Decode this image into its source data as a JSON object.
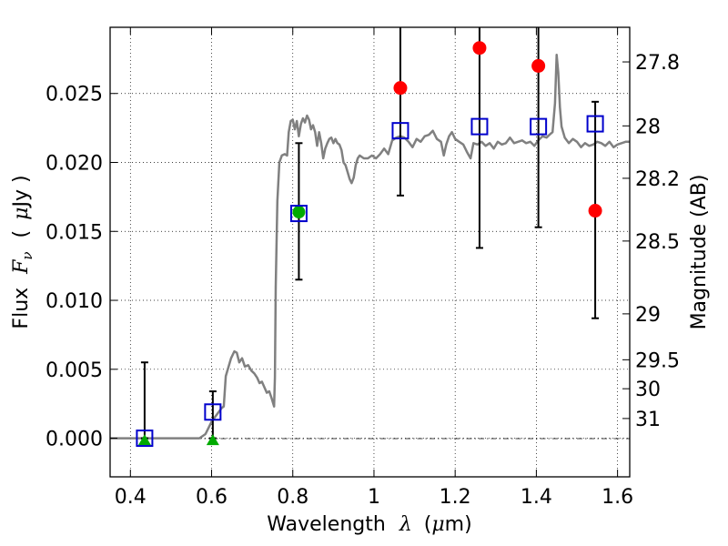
{
  "chart_data": {
    "type": "scatter",
    "xlabel_text": "Wavelength",
    "xlabel_symbol": "λ",
    "xlabel_units_open": "(",
    "xlabel_units_mu": "μ",
    "xlabel_units_rest": "m)",
    "ylabel_text": "Flux",
    "ylabel_symbol": "F",
    "ylabel_symbol_sub": "ν",
    "ylabel_units_open": "(",
    "ylabel_units_mu": "μ",
    "ylabel_units_rest": "Jy )",
    "y2label": "Magnitude (AB)",
    "xlim": [
      0.35,
      1.63
    ],
    "ylim": [
      -0.0028,
      0.0298
    ],
    "x_ticks": [
      0.4,
      0.6,
      0.8,
      1.0,
      1.2,
      1.4,
      1.6
    ],
    "x_tick_labels": [
      "0.4",
      "0.6",
      "0.8",
      "1",
      "1.2",
      "1.4",
      "1.6"
    ],
    "y_ticks": [
      0.0,
      0.005,
      0.01,
      0.015,
      0.02,
      0.025
    ],
    "y_tick_labels": [
      "0.000",
      "0.005",
      "0.010",
      "0.015",
      "0.020",
      "0.025"
    ],
    "mag_ticks": [
      {
        "flux": 0.02729,
        "label": "27.8"
      },
      {
        "flux": 0.02265,
        "label": "28"
      },
      {
        "flux": 0.01885,
        "label": "28.2"
      },
      {
        "flux": 0.0143,
        "label": "28.5"
      },
      {
        "flux": 0.00902,
        "label": "29"
      },
      {
        "flux": 0.00569,
        "label": "29.5"
      },
      {
        "flux": 0.00359,
        "label": "30"
      },
      {
        "flux": 0.00143,
        "label": "31"
      }
    ],
    "grid": true,
    "series": [
      {
        "name": "model-spectrum",
        "kind": "line",
        "color": "#808080",
        "points": [
          [
            0.35,
            0.0
          ],
          [
            0.57,
            0.0
          ],
          [
            0.585,
            0.0003
          ],
          [
            0.6,
            0.0012
          ],
          [
            0.615,
            0.0018
          ],
          [
            0.625,
            0.0022
          ],
          [
            0.63,
            0.0023
          ],
          [
            0.635,
            0.0045
          ],
          [
            0.648,
            0.0058
          ],
          [
            0.656,
            0.0063
          ],
          [
            0.662,
            0.0062
          ],
          [
            0.668,
            0.0055
          ],
          [
            0.675,
            0.0058
          ],
          [
            0.682,
            0.0052
          ],
          [
            0.69,
            0.0053
          ],
          [
            0.698,
            0.0049
          ],
          [
            0.705,
            0.0047
          ],
          [
            0.712,
            0.0044
          ],
          [
            0.718,
            0.004
          ],
          [
            0.724,
            0.0041
          ],
          [
            0.73,
            0.0037
          ],
          [
            0.736,
            0.0033
          ],
          [
            0.742,
            0.0034
          ],
          [
            0.748,
            0.0029
          ],
          [
            0.752,
            0.0025
          ],
          [
            0.754,
            0.0023
          ],
          [
            0.756,
            0.0044
          ],
          [
            0.758,
            0.011
          ],
          [
            0.762,
            0.0172
          ],
          [
            0.767,
            0.02
          ],
          [
            0.773,
            0.0205
          ],
          [
            0.78,
            0.0206
          ],
          [
            0.786,
            0.0205
          ],
          [
            0.79,
            0.0222
          ],
          [
            0.795,
            0.023
          ],
          [
            0.8,
            0.0231
          ],
          [
            0.805,
            0.0224
          ],
          [
            0.81,
            0.023
          ],
          [
            0.815,
            0.0219
          ],
          [
            0.82,
            0.0228
          ],
          [
            0.825,
            0.0232
          ],
          [
            0.83,
            0.0229
          ],
          [
            0.835,
            0.0234
          ],
          [
            0.84,
            0.0231
          ],
          [
            0.845,
            0.0224
          ],
          [
            0.85,
            0.0227
          ],
          [
            0.855,
            0.0222
          ],
          [
            0.86,
            0.0212
          ],
          [
            0.865,
            0.0222
          ],
          [
            0.87,
            0.0214
          ],
          [
            0.875,
            0.0203
          ],
          [
            0.88,
            0.021
          ],
          [
            0.885,
            0.0214
          ],
          [
            0.89,
            0.0217
          ],
          [
            0.895,
            0.0218
          ],
          [
            0.9,
            0.0214
          ],
          [
            0.905,
            0.0217
          ],
          [
            0.91,
            0.0214
          ],
          [
            0.915,
            0.0213
          ],
          [
            0.92,
            0.0209
          ],
          [
            0.925,
            0.02
          ],
          [
            0.93,
            0.0198
          ],
          [
            0.935,
            0.0193
          ],
          [
            0.94,
            0.0188
          ],
          [
            0.945,
            0.0185
          ],
          [
            0.95,
            0.0189
          ],
          [
            0.955,
            0.0198
          ],
          [
            0.96,
            0.0203
          ],
          [
            0.965,
            0.0205
          ],
          [
            0.975,
            0.0203
          ],
          [
            0.985,
            0.0203
          ],
          [
            0.995,
            0.0205
          ],
          [
            1.005,
            0.0203
          ],
          [
            1.015,
            0.0206
          ],
          [
            1.025,
            0.021
          ],
          [
            1.035,
            0.0206
          ],
          [
            1.045,
            0.0216
          ],
          [
            1.055,
            0.0218
          ],
          [
            1.065,
            0.0219
          ],
          [
            1.075,
            0.0218
          ],
          [
            1.085,
            0.0215
          ],
          [
            1.095,
            0.0211
          ],
          [
            1.105,
            0.0217
          ],
          [
            1.115,
            0.0215
          ],
          [
            1.125,
            0.0219
          ],
          [
            1.135,
            0.022
          ],
          [
            1.145,
            0.0223
          ],
          [
            1.155,
            0.0217
          ],
          [
            1.165,
            0.0215
          ],
          [
            1.172,
            0.0205
          ],
          [
            1.178,
            0.0213
          ],
          [
            1.185,
            0.0219
          ],
          [
            1.192,
            0.0222
          ],
          [
            1.2,
            0.0217
          ],
          [
            1.21,
            0.0215
          ],
          [
            1.22,
            0.0213
          ],
          [
            1.23,
            0.0207
          ],
          [
            1.238,
            0.0203
          ],
          [
            1.245,
            0.0214
          ],
          [
            1.255,
            0.0213
          ],
          [
            1.265,
            0.0215
          ],
          [
            1.275,
            0.0212
          ],
          [
            1.285,
            0.0214
          ],
          [
            1.295,
            0.021
          ],
          [
            1.305,
            0.0215
          ],
          [
            1.315,
            0.0213
          ],
          [
            1.325,
            0.0214
          ],
          [
            1.335,
            0.0218
          ],
          [
            1.345,
            0.0214
          ],
          [
            1.355,
            0.0215
          ],
          [
            1.365,
            0.0216
          ],
          [
            1.375,
            0.0214
          ],
          [
            1.385,
            0.0215
          ],
          [
            1.395,
            0.0212
          ],
          [
            1.405,
            0.0216
          ],
          [
            1.415,
            0.0219
          ],
          [
            1.425,
            0.0218
          ],
          [
            1.432,
            0.022
          ],
          [
            1.44,
            0.0222
          ],
          [
            1.446,
            0.0243
          ],
          [
            1.45,
            0.0278
          ],
          [
            1.454,
            0.0265
          ],
          [
            1.458,
            0.024
          ],
          [
            1.462,
            0.0226
          ],
          [
            1.47,
            0.0218
          ],
          [
            1.48,
            0.0214
          ],
          [
            1.49,
            0.0217
          ],
          [
            1.5,
            0.0215
          ],
          [
            1.51,
            0.0211
          ],
          [
            1.52,
            0.0214
          ],
          [
            1.53,
            0.0212
          ],
          [
            1.54,
            0.0213
          ],
          [
            1.55,
            0.0215
          ],
          [
            1.56,
            0.0214
          ],
          [
            1.57,
            0.0212
          ],
          [
            1.58,
            0.0215
          ],
          [
            1.59,
            0.0211
          ],
          [
            1.6,
            0.0213
          ],
          [
            1.61,
            0.0214
          ],
          [
            1.62,
            0.0215
          ],
          [
            1.63,
            0.0215
          ]
        ]
      },
      {
        "name": "observed-flux",
        "kind": "errorbar",
        "color": "#000000",
        "points": [
          {
            "x": 0.435,
            "y": 0.0,
            "lo": 0.0,
            "hi": 0.0055
          },
          {
            "x": 0.603,
            "y": 0.0019,
            "lo": 0.0,
            "hi": 0.0034
          },
          {
            "x": 0.815,
            "y": 0.0163,
            "lo": 0.0115,
            "hi": 0.0214
          },
          {
            "x": 1.065,
            "y": 0.0254,
            "lo": 0.0176,
            "hi": 0.03
          },
          {
            "x": 1.26,
            "y": 0.0283,
            "lo": 0.0138,
            "hi": 0.03
          },
          {
            "x": 1.405,
            "y": 0.027,
            "lo": 0.0153,
            "hi": 0.03
          },
          {
            "x": 1.545,
            "y": 0.0165,
            "lo": 0.0087,
            "hi": 0.0244
          }
        ]
      },
      {
        "name": "model-band-flux",
        "kind": "open-square",
        "color": "#0000cc",
        "points": [
          [
            0.435,
            0.0
          ],
          [
            0.603,
            0.0019
          ],
          [
            0.815,
            0.0163
          ],
          [
            1.065,
            0.0223
          ],
          [
            1.26,
            0.0226
          ],
          [
            1.405,
            0.0226
          ],
          [
            1.545,
            0.0228
          ]
        ]
      },
      {
        "name": "red-detections",
        "kind": "circle",
        "color": "#ff0000",
        "points": [
          [
            1.065,
            0.0254
          ],
          [
            1.26,
            0.0283
          ],
          [
            1.405,
            0.027
          ],
          [
            1.545,
            0.0165
          ]
        ]
      },
      {
        "name": "green-detection",
        "kind": "circle",
        "color": "#00aa00",
        "points": [
          [
            0.815,
            0.0164
          ]
        ]
      },
      {
        "name": "green-upper-limits",
        "kind": "triangle",
        "color": "#00aa00",
        "points": [
          [
            0.435,
            -0.0001
          ],
          [
            0.603,
            -0.0001
          ]
        ]
      }
    ]
  }
}
